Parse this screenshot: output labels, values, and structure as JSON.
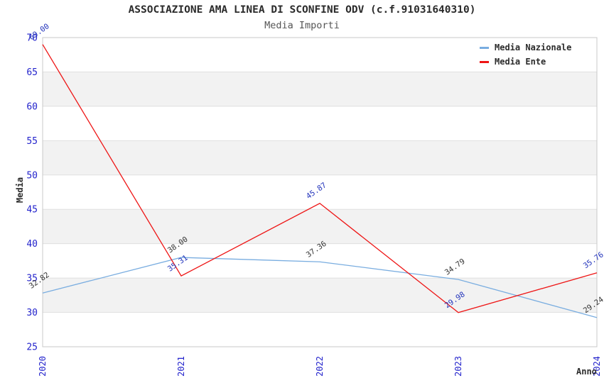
{
  "chart_data": {
    "type": "line",
    "title": "ASSOCIAZIONE AMA LINEA DI SCONFINE ODV (c.f.91031640310)",
    "subtitle": "Media Importi",
    "xlabel": "Anno",
    "ylabel": "Media",
    "categories": [
      "2020",
      "2021",
      "2022",
      "2023",
      "2024"
    ],
    "series": [
      {
        "name": "Media Nazionale",
        "color": "#79ade0",
        "label_color": "#333333",
        "values": [
          32.82,
          38.0,
          37.36,
          34.79,
          29.24
        ]
      },
      {
        "name": "Media Ente",
        "color": "#ee1515",
        "label_color": "#2233bb",
        "values": [
          69.0,
          35.31,
          45.87,
          29.98,
          35.76
        ]
      }
    ],
    "ylim": [
      25,
      70
    ],
    "ytick_step": 5,
    "yticks": [
      25,
      30,
      35,
      40,
      45,
      50,
      55,
      60,
      65,
      70
    ],
    "legend_position": "top-right",
    "grid": "horizontal-bands",
    "colors": {
      "band": "#f2f2f2",
      "gridline": "#e0e0e0",
      "border": "#c8c8c8",
      "tick_label": "#2323cc",
      "axis_title": "#2b2b2b"
    }
  }
}
